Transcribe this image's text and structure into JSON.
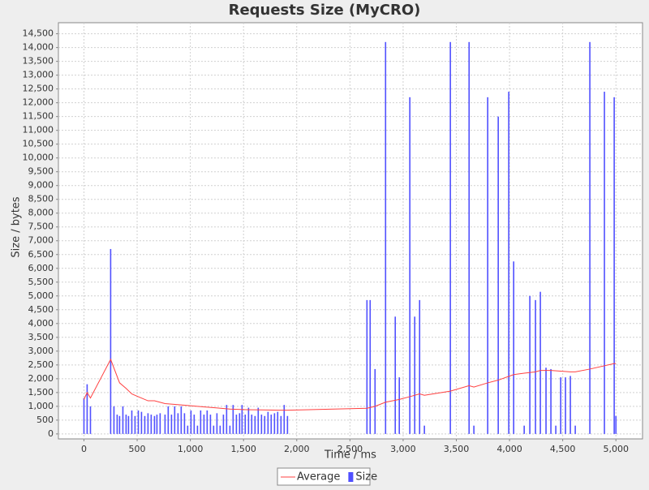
{
  "chart_data": {
    "type": "xy",
    "title": "Requests Size (MyCRO)",
    "x_label": "Time / ms",
    "y_label": "Size / bytes",
    "xlim": [
      -240,
      5250
    ],
    "ylim": [
      -180,
      14900
    ],
    "grid": true,
    "legend": "bottom",
    "xticks": [
      0,
      500,
      {
        "value": 1000,
        "label": "1,000"
      },
      {
        "value": 1500,
        "label": "1,500"
      },
      {
        "value": 2000,
        "label": "2,000"
      },
      {
        "value": 2500,
        "label": "2,500"
      },
      {
        "value": 3000,
        "label": "3,000"
      },
      {
        "value": 3500,
        "label": "3,500"
      },
      {
        "value": 4000,
        "label": "4,000"
      },
      {
        "value": 4500,
        "label": "4,500"
      },
      {
        "value": 5000,
        "label": "5,000"
      }
    ],
    "yticks": [
      0,
      500,
      {
        "value": 1000,
        "label": "1,000"
      },
      {
        "value": 1500,
        "label": "1,500"
      },
      {
        "value": 2000,
        "label": "2,000"
      },
      {
        "value": 2500,
        "label": "2,500"
      },
      {
        "value": 3000,
        "label": "3,000"
      },
      {
        "value": 3500,
        "label": "3,500"
      },
      {
        "value": 4000,
        "label": "4,000"
      },
      {
        "value": 4500,
        "label": "4,500"
      },
      {
        "value": 5000,
        "label": "5,000"
      },
      {
        "value": 5500,
        "label": "5,500"
      },
      {
        "value": 6000,
        "label": "6,000"
      },
      {
        "value": 6500,
        "label": "6,500"
      },
      {
        "value": 7000,
        "label": "7,000"
      },
      {
        "value": 7500,
        "label": "7,500"
      },
      {
        "value": 8000,
        "label": "8,000"
      },
      {
        "value": 8500,
        "label": "8,500"
      },
      {
        "value": 9000,
        "label": "9,000"
      },
      {
        "value": 9500,
        "label": "9,500"
      },
      {
        "value": 10000,
        "label": "10,000"
      },
      {
        "value": 10500,
        "label": "10,500"
      },
      {
        "value": 11000,
        "label": "11,000"
      },
      {
        "value": 11500,
        "label": "11,500"
      },
      {
        "value": 12000,
        "label": "12,000"
      },
      {
        "value": 12500,
        "label": "12,500"
      },
      {
        "value": 13000,
        "label": "13,000"
      },
      {
        "value": 13500,
        "label": "13,500"
      },
      {
        "value": 14000,
        "label": "14,000"
      },
      {
        "value": 14500,
        "label": "14,500"
      }
    ],
    "series": [
      {
        "name": "Average",
        "kind": "line",
        "color": "#ff4040",
        "x": [
          0,
          30,
          61,
          251,
          335,
          396,
          450,
          541,
          602,
          663,
          762,
          914,
          1067,
          1219,
          1372,
          1524,
          1677,
          1829,
          1913,
          2660,
          2736,
          2835,
          2964,
          3063,
          3155,
          3200,
          3444,
          3620,
          3665,
          3795,
          3894,
          4039,
          4138,
          4244,
          4290,
          4389,
          4572,
          4618,
          4755,
          4984,
          5000
        ],
        "values": [
          1250,
          1500,
          1300,
          2700,
          1850,
          1650,
          1450,
          1300,
          1200,
          1200,
          1100,
          1050,
          1000,
          950,
          900,
          880,
          870,
          860,
          860,
          930,
          1000,
          1150,
          1250,
          1350,
          1450,
          1400,
          1550,
          1750,
          1700,
          1850,
          1950,
          2150,
          2200,
          2250,
          2300,
          2300,
          2250,
          2250,
          2350,
          2550,
          2550
        ]
      },
      {
        "name": "Size",
        "kind": "bar",
        "color": "#5050ff",
        "x": [
          0,
          30,
          61,
          251,
          282,
          312,
          335,
          366,
          396,
          419,
          450,
          480,
          511,
          541,
          572,
          602,
          632,
          663,
          686,
          716,
          762,
          792,
          823,
          853,
          884,
          914,
          945,
          975,
          1006,
          1036,
          1067,
          1097,
          1128,
          1158,
          1189,
          1219,
          1250,
          1280,
          1311,
          1341,
          1372,
          1402,
          1433,
          1463,
          1486,
          1516,
          1547,
          1577,
          1608,
          1638,
          1669,
          1699,
          1730,
          1760,
          1791,
          1821,
          1852,
          1882,
          1913,
          2660,
          2690,
          2736,
          2835,
          2926,
          2964,
          3063,
          3109,
          3155,
          3200,
          3444,
          3620,
          3665,
          3795,
          3894,
          3993,
          4039,
          4138,
          4191,
          4244,
          4290,
          4343,
          4389,
          4435,
          4481,
          4526,
          4572,
          4618,
          4755,
          4892,
          4984,
          5000
        ],
        "values": [
          1300,
          1800,
          1000,
          6700,
          1000,
          700,
          650,
          1000,
          700,
          650,
          850,
          650,
          850,
          800,
          650,
          750,
          700,
          650,
          700,
          750,
          700,
          1000,
          700,
          1000,
          750,
          1000,
          750,
          300,
          850,
          700,
          300,
          850,
          700,
          850,
          700,
          300,
          750,
          300,
          700,
          1050,
          300,
          1050,
          700,
          750,
          1050,
          700,
          950,
          700,
          650,
          950,
          700,
          650,
          800,
          700,
          750,
          800,
          650,
          1050,
          650,
          4850,
          4850,
          2350,
          14200,
          4250,
          2050,
          12200,
          4250,
          4850,
          300,
          14200,
          14200,
          300,
          12200,
          11500,
          12400,
          6250,
          300,
          5000,
          4850,
          5150,
          2400,
          2350,
          300,
          2050,
          2050,
          2100,
          300,
          14200,
          12400,
          12200,
          650
        ]
      }
    ]
  }
}
